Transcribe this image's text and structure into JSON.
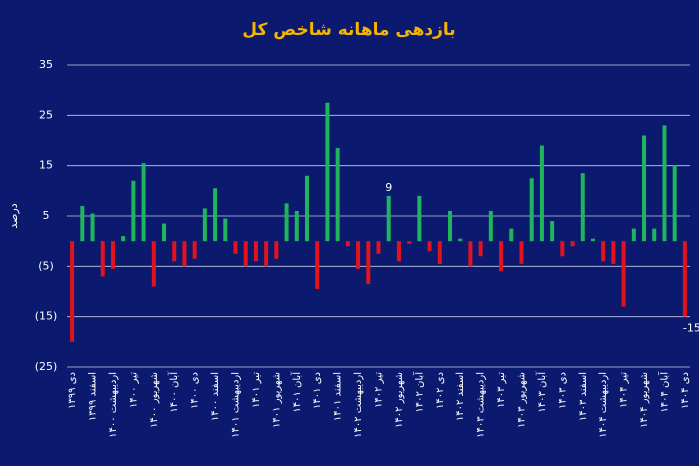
{
  "chart_data": {
    "type": "bar",
    "title": "بازدهی ماهانه شاخص کل",
    "y_label": "درصد",
    "categories": [
      "دی ۱۳۹۹",
      null,
      "اسفند ۱۳۹۹",
      null,
      "اردیبهشت ۱۴۰۰",
      null,
      "تیر ۱۴۰۰",
      null,
      "شهریور ۱۴۰۰",
      null,
      "آبان ۱۴۰۰",
      null,
      "دی ۱۴۰۰",
      null,
      "اسفند ۱۴۰۰",
      null,
      "اردیبهشت ۱۴۰۱",
      null,
      "تیر ۱۴۰۱",
      null,
      "شهریور ۱۴۰۱",
      null,
      "آبان ۱۴۰۱",
      null,
      "دی ۱۴۰۱",
      null,
      "اسفند ۱۴۰۱",
      null,
      "اردیبهشت ۱۴۰۲",
      null,
      "تیر ۱۴۰۲",
      null,
      "شهریور ۱۴۰۲",
      null,
      "آبان ۱۴۰۲",
      null,
      "دی ۱۴۰۲",
      null,
      "اسفند ۱۴۰۲",
      null,
      "اردیبهشت ۱۴۰۳",
      null,
      "تیر ۱۴۰۳",
      null,
      "شهریور ۱۴۰۳",
      null,
      "آبان ۱۴۰۳",
      null,
      "دی ۱۴۰۳",
      null,
      "اسفند ۱۴۰۳",
      null,
      "اردیبهشت ۱۴۰۴",
      null,
      "تیر ۱۴۰۴",
      null,
      "شهریور ۱۴۰۴",
      null,
      "آبان ۱۴۰۴",
      null,
      "دی ۱۴۰۴"
    ],
    "values": [
      -20,
      7,
      5.5,
      -7,
      -5.5,
      1,
      12,
      15.5,
      -9,
      3.5,
      -4,
      -5,
      -3.5,
      6.5,
      10.5,
      4.5,
      -2.5,
      -5,
      -4,
      -5,
      -3.5,
      7.5,
      6,
      13,
      -9.5,
      27.5,
      18.5,
      -1,
      -5.5,
      -8.5,
      -2.5,
      9,
      -4,
      -0.5,
      9,
      -2,
      -4.5,
      6,
      0.5,
      -5,
      -3,
      6,
      -6,
      2.5,
      -4.5,
      12.5,
      19,
      4,
      -3,
      -1,
      13.5,
      0.5,
      -4,
      -4.5,
      -13,
      2.5,
      21,
      2.5,
      23,
      15,
      -15
    ],
    "value_labels": [
      null,
      null,
      null,
      null,
      null,
      null,
      null,
      null,
      null,
      null,
      null,
      null,
      null,
      null,
      null,
      null,
      null,
      null,
      null,
      null,
      null,
      null,
      null,
      null,
      null,
      null,
      null,
      null,
      null,
      null,
      null,
      "9",
      null,
      null,
      null,
      null,
      null,
      null,
      null,
      null,
      null,
      null,
      null,
      null,
      null,
      null,
      null,
      null,
      null,
      null,
      null,
      null,
      null,
      null,
      null,
      null,
      null,
      null,
      null,
      null,
      "-15"
    ],
    "positive_color": "#1fb55c",
    "negative_color": "#e3121c",
    "ylim": [
      -25,
      35
    ],
    "yticks": [
      35,
      25,
      15,
      5,
      {
        "value": -5,
        "label": "(5)"
      },
      {
        "value": -15,
        "label": "(15)"
      },
      {
        "value": -25,
        "label": "(25)"
      }
    ],
    "grid": true
  }
}
